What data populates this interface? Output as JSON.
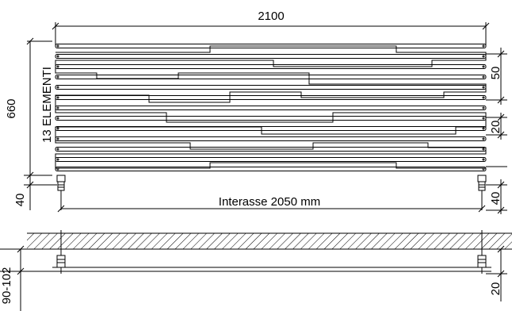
{
  "drawing": {
    "overall_width": "2100",
    "overall_height": "660",
    "elements_label": "13 ELEMENTI",
    "spacing_top": "50",
    "spacing_mid": "20",
    "bottom_offset_left": "40",
    "bottom_offset_right": "40",
    "interasse": "Interasse  2050 mm",
    "wall_offset": "90-102",
    "wall_gap": "20"
  },
  "colors": {
    "line": "#000000",
    "background": "#ffffff"
  }
}
